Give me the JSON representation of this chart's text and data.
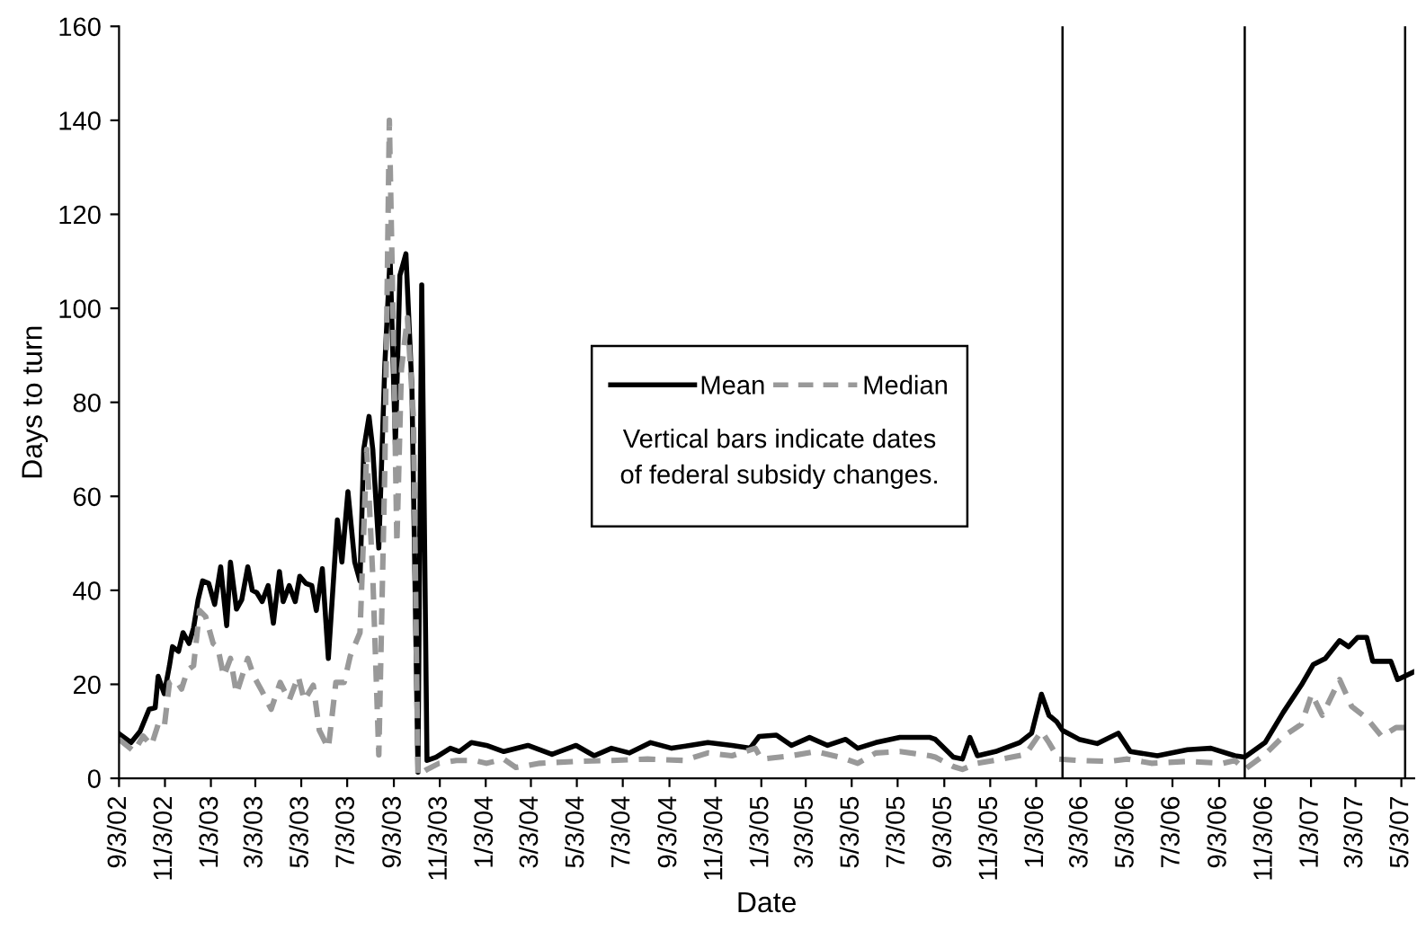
{
  "chart_data": {
    "type": "line",
    "xlabel": "Date",
    "ylabel": "Days to turn",
    "annotations": [
      "Vertical bars indicate dates\nof federal subsidy changes."
    ],
    "xlim": [
      "2002-09-03",
      "2007-05-20"
    ],
    "ylim": [
      0,
      160
    ],
    "yticks": [
      0,
      20,
      40,
      60,
      80,
      100,
      120,
      140,
      160
    ],
    "xticks": [
      {
        "value": "2002-09-03",
        "label": "9/3/02"
      },
      {
        "value": "2002-11-03",
        "label": "11/3/02"
      },
      {
        "value": "2003-01-03",
        "label": "1/3/03"
      },
      {
        "value": "2003-03-03",
        "label": "3/3/03"
      },
      {
        "value": "2003-05-03",
        "label": "5/3/03"
      },
      {
        "value": "2003-07-03",
        "label": "7/3/03"
      },
      {
        "value": "2003-09-03",
        "label": "9/3/03"
      },
      {
        "value": "2003-11-03",
        "label": "11/3/03"
      },
      {
        "value": "2004-01-03",
        "label": "1/3/04"
      },
      {
        "value": "2004-03-03",
        "label": "3/3/04"
      },
      {
        "value": "2004-05-03",
        "label": "5/3/04"
      },
      {
        "value": "2004-07-03",
        "label": "7/3/04"
      },
      {
        "value": "2004-09-03",
        "label": "9/3/04"
      },
      {
        "value": "2004-11-03",
        "label": "11/3/04"
      },
      {
        "value": "2005-01-03",
        "label": "1/3/05"
      },
      {
        "value": "2005-03-03",
        "label": "3/3/05"
      },
      {
        "value": "2005-05-03",
        "label": "5/3/05"
      },
      {
        "value": "2005-07-03",
        "label": "7/3/05"
      },
      {
        "value": "2005-09-03",
        "label": "9/3/05"
      },
      {
        "value": "2005-11-03",
        "label": "11/3/05"
      },
      {
        "value": "2006-01-03",
        "label": "1/3/06"
      },
      {
        "value": "2006-03-03",
        "label": "3/3/06"
      },
      {
        "value": "2006-05-03",
        "label": "5/3/06"
      },
      {
        "value": "2006-07-03",
        "label": "7/3/06"
      },
      {
        "value": "2006-09-03",
        "label": "9/3/06"
      },
      {
        "value": "2006-11-03",
        "label": "11/3/06"
      },
      {
        "value": "2007-01-03",
        "label": "1/3/07"
      },
      {
        "value": "2007-03-03",
        "label": "3/3/07"
      },
      {
        "value": "2007-05-03",
        "label": "5/3/07"
      }
    ],
    "grid": false,
    "legend": "center",
    "ref_lines": [
      {
        "axis": "x",
        "value": "2006-02-07",
        "color": "#000000"
      },
      {
        "axis": "x",
        "value": "2006-10-07",
        "color": "#000000"
      },
      {
        "axis": "x",
        "value": "2007-05-08",
        "color": "#000000"
      }
    ],
    "series": [
      {
        "name": "Mean",
        "color": "#000000",
        "line_style": "solid",
        "x": [
          "2002-09-03",
          "2002-09-19",
          "2002-10-01",
          "2002-10-13",
          "2002-10-21",
          "2002-10-25",
          "2002-11-02",
          "2002-11-09",
          "2002-11-13",
          "2002-11-21",
          "2002-11-27",
          "2002-12-05",
          "2002-12-11",
          "2002-12-17",
          "2002-12-23",
          "2002-12-31",
          "2003-01-08",
          "2003-01-16",
          "2003-01-24",
          "2003-01-29",
          "2003-02-06",
          "2003-02-13",
          "2003-02-21",
          "2003-02-27",
          "2003-03-05",
          "2003-03-12",
          "2003-03-20",
          "2003-03-27",
          "2003-04-04",
          "2003-04-09",
          "2003-04-17",
          "2003-04-25",
          "2003-05-01",
          "2003-05-09",
          "2003-05-17",
          "2003-05-23",
          "2003-05-31",
          "2003-06-08",
          "2003-06-20",
          "2003-06-26",
          "2003-07-04",
          "2003-07-13",
          "2003-07-20",
          "2003-07-25",
          "2003-08-01",
          "2003-08-06",
          "2003-08-14",
          "2003-08-22",
          "2003-08-29",
          "2003-09-05",
          "2003-09-11",
          "2003-09-19",
          "2003-09-27",
          "2003-10-05",
          "2003-10-10",
          "2003-10-17",
          "2003-10-29",
          "2003-11-17",
          "2003-11-29",
          "2003-12-15",
          "2004-01-04",
          "2004-01-27",
          "2004-02-28",
          "2004-03-31",
          "2004-05-02",
          "2004-05-26",
          "2004-06-18",
          "2004-07-12",
          "2004-08-09",
          "2004-09-06",
          "2004-09-30",
          "2004-10-24",
          "2004-11-25",
          "2004-12-19",
          "2004-12-31",
          "2005-01-23",
          "2005-02-12",
          "2005-03-08",
          "2005-04-01",
          "2005-04-25",
          "2005-05-11",
          "2005-06-04",
          "2005-07-06",
          "2005-08-15",
          "2005-08-22",
          "2005-09-15",
          "2005-09-27",
          "2005-10-07",
          "2005-10-17",
          "2005-11-10",
          "2005-12-12",
          "2005-12-28",
          "2006-01-10",
          "2006-01-20",
          "2006-01-30",
          "2006-02-07",
          "2006-03-01",
          "2006-03-25",
          "2006-04-22",
          "2006-05-08",
          "2006-06-13",
          "2006-07-23",
          "2006-08-23",
          "2006-09-24",
          "2006-10-07",
          "2006-11-03",
          "2006-11-27",
          "2006-12-21",
          "2007-01-06",
          "2007-01-22",
          "2007-02-10",
          "2007-02-22",
          "2007-03-06",
          "2007-03-18",
          "2007-03-26",
          "2007-04-19",
          "2007-04-28",
          "2007-05-20"
        ],
        "values": [
          9.5,
          7.6,
          10,
          14.7,
          15,
          21.7,
          18,
          24,
          28,
          27,
          31,
          28.7,
          32,
          38,
          42,
          41.5,
          37,
          45,
          32.5,
          46,
          36,
          38,
          45,
          40,
          39.5,
          37.6,
          41,
          33,
          44,
          37.6,
          41,
          37.6,
          43,
          41.5,
          41,
          35.7,
          44.6,
          25.5,
          55,
          46,
          61,
          46,
          42,
          70,
          77,
          70,
          49,
          88,
          111,
          71,
          107,
          111.6,
          83,
          1.3,
          105,
          3.8,
          4.5,
          6.4,
          5.7,
          7.6,
          7,
          5.7,
          7,
          5.1,
          7,
          4.8,
          6.4,
          5.4,
          7.6,
          6.4,
          7,
          7.6,
          7,
          6.4,
          8.9,
          9.2,
          7,
          8.7,
          7,
          8.3,
          6.4,
          7.6,
          8.7,
          8.7,
          8.3,
          4.5,
          4.1,
          8.7,
          4.8,
          5.7,
          7.6,
          9.6,
          17.9,
          13.4,
          12.1,
          10.2,
          8.3,
          7.4,
          9.6,
          5.7,
          4.8,
          6.1,
          6.4,
          4.8,
          4.5,
          7.6,
          14,
          19.8,
          24.2,
          25.5,
          29.3,
          28,
          30,
          30,
          24.9,
          24.9,
          21,
          22.7
        ]
      },
      {
        "name": "Median",
        "color": "#999999",
        "line_style": "dashed",
        "x": [
          "2002-09-03",
          "2002-09-23",
          "2002-10-05",
          "2002-10-16",
          "2002-10-25",
          "2002-11-02",
          "2002-11-09",
          "2002-11-17",
          "2002-11-25",
          "2002-12-03",
          "2002-12-11",
          "2002-12-19",
          "2002-12-27",
          "2003-01-06",
          "2003-01-12",
          "2003-01-20",
          "2003-01-29",
          "2003-02-06",
          "2003-02-21",
          "2003-03-01",
          "2003-03-12",
          "2003-03-24",
          "2003-04-05",
          "2003-04-17",
          "2003-04-29",
          "2003-05-07",
          "2003-05-19",
          "2003-05-27",
          "2003-06-08",
          "2003-06-18",
          "2003-06-29",
          "2003-07-07",
          "2003-07-20",
          "2003-07-29",
          "2003-08-06",
          "2003-08-14",
          "2003-08-22",
          "2003-08-28",
          "2003-09-03",
          "2003-09-07",
          "2003-09-13",
          "2003-09-21",
          "2003-09-29",
          "2003-10-05",
          "2003-10-17",
          "2003-11-02",
          "2003-11-25",
          "2003-12-19",
          "2004-01-04",
          "2004-01-27",
          "2004-02-12",
          "2004-03-15",
          "2004-05-02",
          "2004-06-18",
          "2004-08-05",
          "2004-09-22",
          "2004-10-24",
          "2004-11-25",
          "2004-12-26",
          "2005-01-03",
          "2005-02-12",
          "2005-03-16",
          "2005-04-17",
          "2005-05-11",
          "2005-06-04",
          "2005-07-06",
          "2005-08-15",
          "2005-08-22",
          "2005-09-15",
          "2005-09-27",
          "2005-10-17",
          "2005-11-18",
          "2005-12-20",
          "2006-01-10",
          "2006-01-20",
          "2006-02-02",
          "2006-03-01",
          "2006-04-10",
          "2006-05-04",
          "2006-06-05",
          "2006-07-23",
          "2006-09-08",
          "2006-09-24",
          "2006-10-07",
          "2006-11-03",
          "2006-11-27",
          "2006-12-21",
          "2007-01-04",
          "2007-01-18",
          "2007-02-10",
          "2007-02-26",
          "2007-03-18",
          "2007-04-07",
          "2007-04-26",
          "2007-05-20"
        ],
        "values": [
          8.3,
          5.7,
          9,
          7,
          11.5,
          10.8,
          20.4,
          21,
          19,
          23,
          24,
          35.7,
          34.4,
          28.7,
          28,
          21.7,
          25.5,
          18,
          25.5,
          21.7,
          18.5,
          14.7,
          20.4,
          16.6,
          21.7,
          16.6,
          19.8,
          10.2,
          6.4,
          20.4,
          20.4,
          26,
          31,
          70,
          43,
          5,
          66,
          140,
          89,
          50,
          87,
          98,
          76.5,
          0.6,
          1.9,
          3.2,
          3.8,
          3.8,
          3.2,
          4.1,
          2.3,
          3.2,
          3.6,
          3.8,
          4.1,
          3.8,
          5.4,
          4.8,
          6.4,
          4.1,
          4.8,
          5.7,
          4.5,
          3.2,
          5.4,
          5.7,
          4.8,
          4.5,
          2.5,
          1.9,
          3.2,
          4.1,
          5.1,
          10,
          7.6,
          4.1,
          3.8,
          3.6,
          4.1,
          3.2,
          3.6,
          3.2,
          3.8,
          1.9,
          5.1,
          8.9,
          11.5,
          17.9,
          13.4,
          21,
          15.3,
          12.8,
          8.9,
          10.8,
          10.8
        ]
      }
    ]
  }
}
